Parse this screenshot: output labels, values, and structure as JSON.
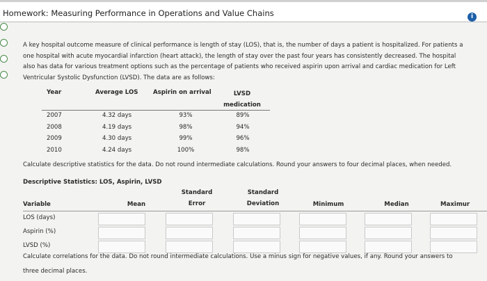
{
  "header": {
    "title": "Homework: Measuring Performance in Operations and Value Chains"
  },
  "intro": [
    "A key hospital outcome measure of clinical performance is length of stay (LOS), that is, the number of days a patient is hospitalized. For patients a",
    "one hospital with acute myocardial infarction (heart attack), the length of stay over the past four years has consistently decreased. The hospital",
    "also has data for various treatment options such as the percentage of patients who received aspirin upon arrival and cardiac medication for Left",
    "Ventricular Systolic Dysfunction (LVSD). The data are as follows:"
  ],
  "data_table": {
    "headers": [
      "Year",
      "Average LOS",
      "Aspirin on arrival",
      [
        "LVSD",
        "medication"
      ]
    ],
    "rows": [
      [
        "2007",
        "4.32 days",
        "93%",
        "89%"
      ],
      [
        "2008",
        "4.19 days",
        "98%",
        "94%"
      ],
      [
        "2009",
        "4.30 days",
        "99%",
        "96%"
      ],
      [
        "2010",
        "4.24 days",
        "100%",
        "98%"
      ]
    ]
  },
  "instruction": "Calculate descriptive statistics for the data. Do not round intermediate calculations. Round your answers to four decimal places, when needed.",
  "stats": {
    "title": "Descriptive Statistics: LOS, Aspirin, LVSD",
    "headers": [
      "Variable",
      "Mean",
      [
        "Standard",
        "Error"
      ],
      [
        "Standard",
        "Deviation"
      ],
      "Minimum",
      "Median",
      "Maximur"
    ],
    "rows": [
      "LOS (days)",
      "Aspirin (%)",
      "LVSD (%)"
    ]
  },
  "footer": [
    "Calculate correlations for the data. Do not round intermediate calculations. Use a minus sign for negative values, if any. Round your answers to",
    "three decimal places."
  ]
}
